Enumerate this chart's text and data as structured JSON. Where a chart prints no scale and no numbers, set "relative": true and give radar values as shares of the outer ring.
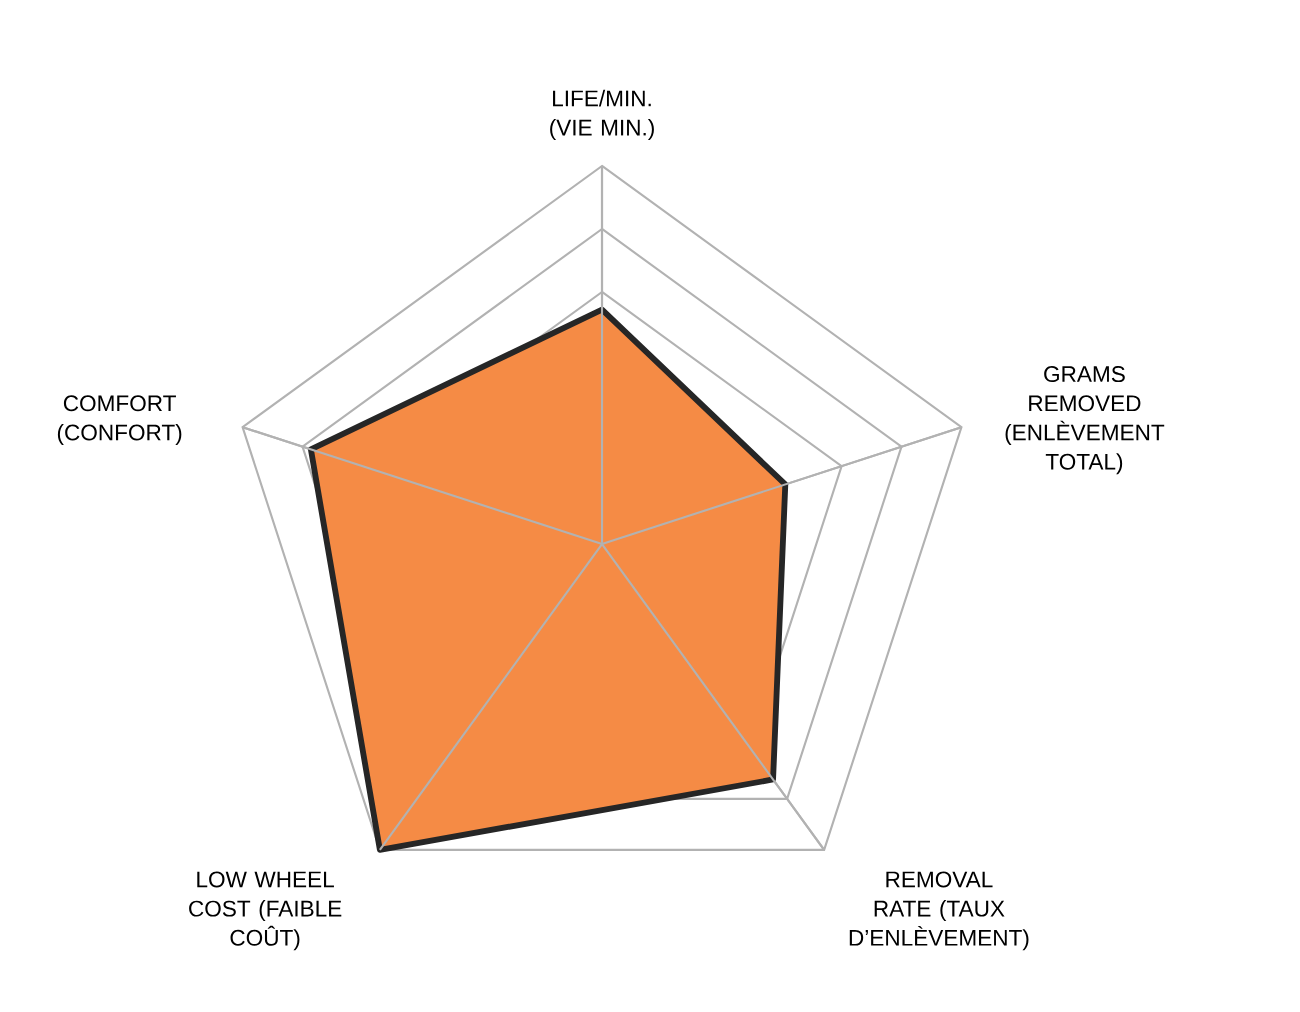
{
  "chart_data": {
    "type": "radar",
    "relative": true,
    "grid": true,
    "legend": false,
    "marker": "none",
    "categories": [
      "LIFE/MIN. (VIE MIN.)",
      "GRAMS REMOVED (ENLÈVEMENT TOTAL)",
      "REMOVAL RATE (TAUX D’ENLÈVEMENT)",
      "LOW WHEEL COST (FAIBLE COÛT)",
      "COMFORT (CONFORT)"
    ],
    "series": [
      {
        "color": "#f58b45",
        "values": [
          0.62,
          0.51,
          0.77,
          1.0,
          0.81
        ]
      }
    ]
  }
}
